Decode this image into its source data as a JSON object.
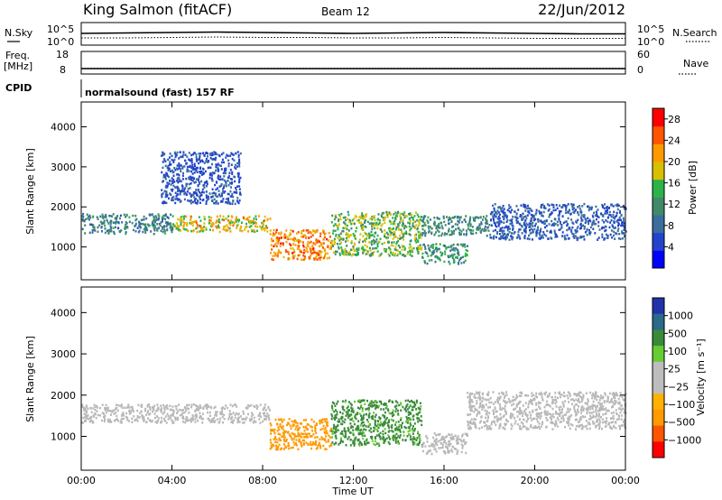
{
  "header": {
    "station": "King Salmon (fitACF)",
    "beam": "Beam 12",
    "date": "22/Jun/2012"
  },
  "top_panels": {
    "nsky_label": "N.Sky",
    "nsky_ticks": [
      "10^5",
      "10^0"
    ],
    "nsearch_label": "N.Search",
    "nsearch_ticks": [
      "10^5",
      "10^0"
    ],
    "freq_label_1": "Freq.",
    "freq_label_2": "[MHz]",
    "freq_ticks": [
      "18",
      "8"
    ],
    "nave_label": "Nave",
    "nave_ticks": [
      "60",
      "0"
    ],
    "cpid_label": "CPID",
    "cpid_text": "normalsound (fast) 157 RF"
  },
  "colors": {
    "power_scale": [
      "#0000ff",
      "#2244cc",
      "#3a6e9e",
      "#3f8a6a",
      "#2bb34a",
      "#d8c000",
      "#ff9900",
      "#ff5500",
      "#ff0000"
    ],
    "velocity_scale": [
      "#ff0000",
      "#ff5500",
      "#ff9a00",
      "#ffb000",
      "#bdbdbd",
      "#bdbdbd",
      "#66cc33",
      "#3a8a3a",
      "#2a6a8a",
      "#2233aa"
    ],
    "ground_scatter": "#b8b8b8"
  },
  "chart_data": [
    {
      "type": "heatmap",
      "title": "",
      "xlabel": "",
      "ylabel": "Slant Range [km]",
      "x_ticks": [
        "00:00",
        "04:00",
        "08:00",
        "12:00",
        "16:00",
        "20:00",
        "00:00"
      ],
      "xlim_hours": [
        0,
        24
      ],
      "y_ticks": [
        1000,
        2000,
        3000,
        4000
      ],
      "ylim_km": [
        180,
        4620
      ],
      "colorbar": {
        "label": "Power [dB]",
        "ticks": [
          4,
          8,
          12,
          16,
          20,
          24,
          28
        ],
        "range": [
          0,
          30
        ]
      },
      "features": [
        {
          "hours": [
            0,
            4
          ],
          "range_km": [
            1350,
            1850
          ],
          "power_db": [
            6,
            14
          ]
        },
        {
          "hours": [
            4,
            8.3
          ],
          "range_km": [
            1400,
            1800
          ],
          "power_db": [
            14,
            24
          ]
        },
        {
          "hours": [
            8.3,
            11
          ],
          "range_km": [
            700,
            1450
          ],
          "power_db": [
            18,
            28
          ]
        },
        {
          "hours": [
            11,
            15
          ],
          "range_km": [
            800,
            1900
          ],
          "power_db": [
            10,
            20
          ]
        },
        {
          "hours": [
            15,
            17
          ],
          "range_km": [
            600,
            1100
          ],
          "power_db": [
            8,
            16
          ]
        },
        {
          "hours": [
            15,
            18
          ],
          "range_km": [
            1300,
            1800
          ],
          "power_db": [
            8,
            14
          ]
        },
        {
          "hours": [
            18,
            24
          ],
          "range_km": [
            1200,
            2100
          ],
          "power_db": [
            4,
            10
          ]
        },
        {
          "hours": [
            3.5,
            7
          ],
          "range_km": [
            2100,
            3400
          ],
          "power_db": [
            4,
            8
          ]
        }
      ]
    },
    {
      "type": "heatmap",
      "title": "",
      "xlabel": "Time UT",
      "ylabel": "Slant Range [km]",
      "x_ticks": [
        "00:00",
        "04:00",
        "08:00",
        "12:00",
        "16:00",
        "20:00",
        "00:00"
      ],
      "xlim_hours": [
        0,
        24
      ],
      "y_ticks": [
        1000,
        2000,
        3000,
        4000
      ],
      "ylim_km": [
        180,
        4620
      ],
      "colorbar": {
        "label": "Velocity [m s⁻¹]",
        "ticks": [
          "1000",
          "500",
          "100",
          "25",
          "−25",
          "−100",
          "−500",
          "−1000"
        ]
      },
      "features": [
        {
          "hours": [
            0,
            8.3
          ],
          "range_km": [
            1350,
            1800
          ],
          "velocity": "ground scatter"
        },
        {
          "hours": [
            8.3,
            11
          ],
          "range_km": [
            700,
            1450
          ],
          "velocity_ms": [
            -500,
            -100
          ]
        },
        {
          "hours": [
            11,
            15
          ],
          "range_km": [
            800,
            1900
          ],
          "velocity_ms": [
            25,
            500
          ]
        },
        {
          "hours": [
            15,
            17
          ],
          "range_km": [
            600,
            1100
          ],
          "velocity": "ground scatter"
        },
        {
          "hours": [
            17,
            24
          ],
          "range_km": [
            1200,
            2100
          ],
          "velocity": "ground scatter"
        }
      ]
    }
  ],
  "noise_series": {
    "x_hours": [
      0,
      2,
      4,
      6,
      8,
      10,
      12,
      14,
      16,
      18,
      20,
      22,
      24
    ],
    "nsky_log": [
      2.6,
      2.7,
      2.8,
      2.9,
      2.8,
      2.7,
      2.6,
      2.7,
      2.8,
      2.7,
      2.6,
      2.5,
      2.5
    ],
    "nsearch_log": [
      1.6,
      1.6,
      1.7,
      1.8,
      1.7,
      1.7,
      1.6,
      1.6,
      1.7,
      1.6,
      1.5,
      1.5,
      1.5
    ],
    "freq_mhz": [
      10.4,
      10.4,
      10.4,
      10.4,
      10.4,
      10.4,
      10.4,
      10.4,
      10.4,
      10.4,
      10.4,
      10.4,
      10.4
    ],
    "nave": [
      15,
      15,
      15,
      15,
      15,
      15,
      15,
      15,
      15,
      15,
      15,
      15,
      15
    ]
  }
}
